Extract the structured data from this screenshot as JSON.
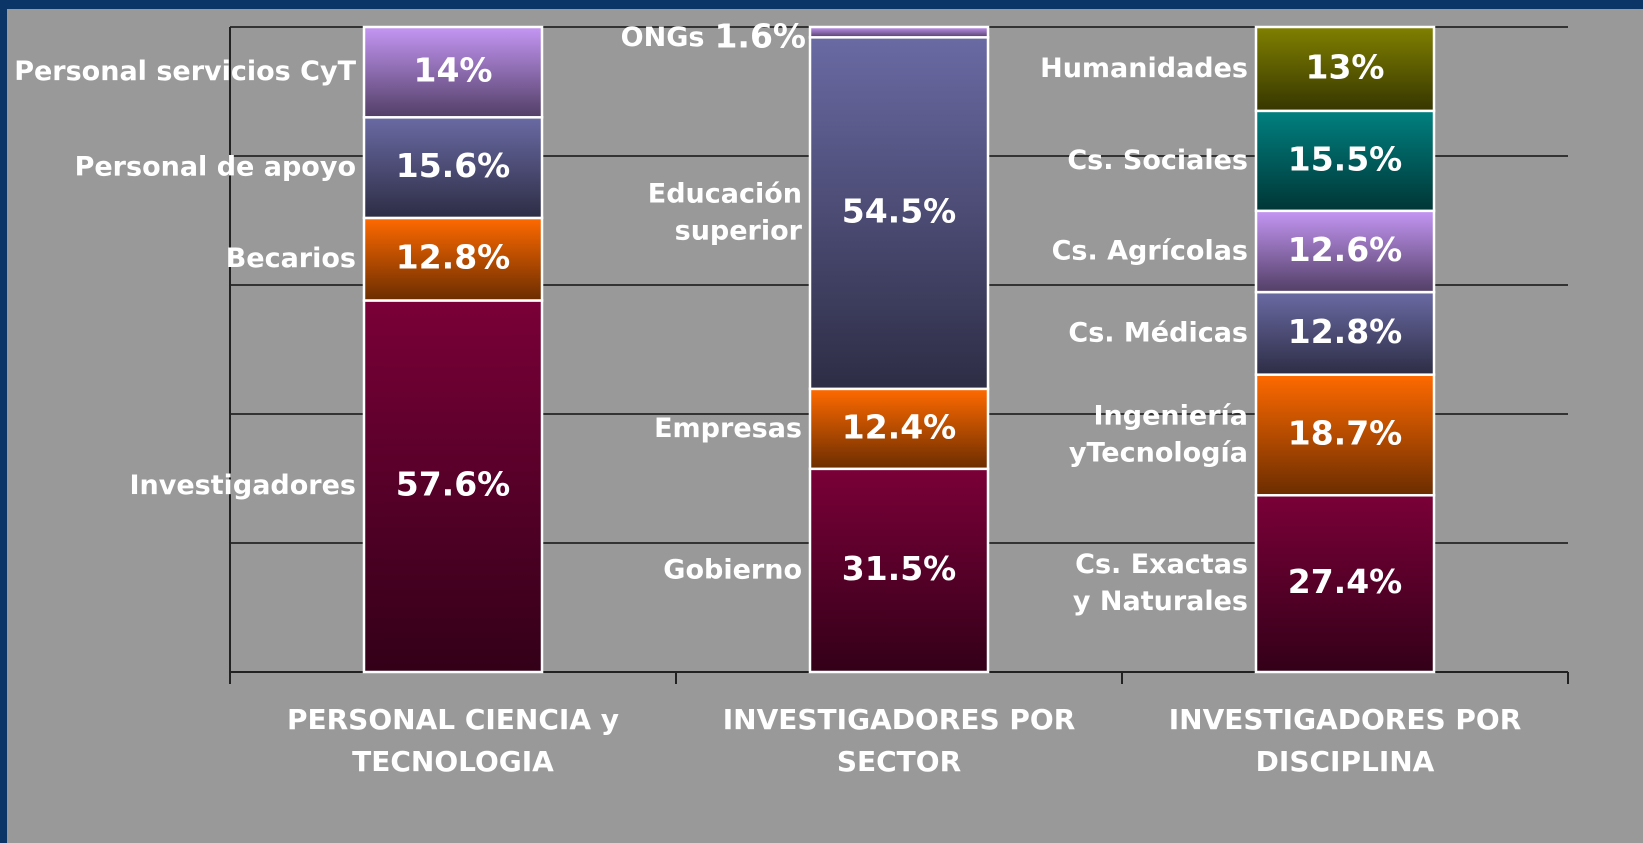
{
  "chart_data": {
    "type": "bar",
    "stacked": true,
    "ylim": [
      0,
      100
    ],
    "yticks": [
      0,
      20,
      40,
      60,
      80,
      100
    ],
    "grid": true,
    "categories": [
      [
        "PERSONAL CIENCIA y",
        "TECNOLOGIA"
      ],
      [
        "INVESTIGADORES POR",
        "SECTOR"
      ],
      [
        "INVESTIGADORES POR",
        "DISCIPLINA"
      ]
    ],
    "stacks": [
      {
        "segments": [
          {
            "name": [
              "Investigadores"
            ],
            "value": 57.6,
            "value_label": "57.6%",
            "color": "#7a0038"
          },
          {
            "name": [
              "Becarios"
            ],
            "value": 12.8,
            "value_label": "12.8%",
            "color": "#ff6a00"
          },
          {
            "name": [
              "Personal de apoyo"
            ],
            "value": 15.6,
            "value_label": "15.6%",
            "color": "#6a6aa4"
          },
          {
            "name": [
              "Personal servicios CyT"
            ],
            "value": 14,
            "value_label": "14%",
            "color": "#c496f4"
          }
        ]
      },
      {
        "segments": [
          {
            "name": [
              "Gobierno"
            ],
            "value": 31.5,
            "value_label": "31.5%",
            "color": "#7a0038"
          },
          {
            "name": [
              "Empresas"
            ],
            "value": 12.4,
            "value_label": "12.4%",
            "color": "#ff6a00"
          },
          {
            "name": [
              "Educación",
              "superior"
            ],
            "value": 54.5,
            "value_label": "54.5%",
            "color": "#6a6aa4"
          },
          {
            "name": [
              "ONGs"
            ],
            "value": 1.6,
            "value_label": "1.6%",
            "color": "#c496f4"
          }
        ]
      },
      {
        "segments": [
          {
            "name": [
              "Cs. Exactas",
              "y Naturales"
            ],
            "value": 27.4,
            "value_label": "27.4%",
            "color": "#7a0038"
          },
          {
            "name": [
              "Ingeniería",
              "yTecnología"
            ],
            "value": 18.7,
            "value_label": "18.7%",
            "color": "#ff6a00"
          },
          {
            "name": [
              "Cs. Médicas"
            ],
            "value": 12.8,
            "value_label": "12.8%",
            "color": "#6a6aa4"
          },
          {
            "name": [
              "Cs. Agrícolas"
            ],
            "value": 12.6,
            "value_label": "12.6%",
            "color": "#c496f4"
          },
          {
            "name": [
              "Cs. Sociales"
            ],
            "value": 15.5,
            "value_label": "15.5%",
            "color": "#008080"
          },
          {
            "name": [
              "Humanidades"
            ],
            "value": 13,
            "value_label": "13%",
            "color": "#808000"
          }
        ]
      }
    ]
  }
}
